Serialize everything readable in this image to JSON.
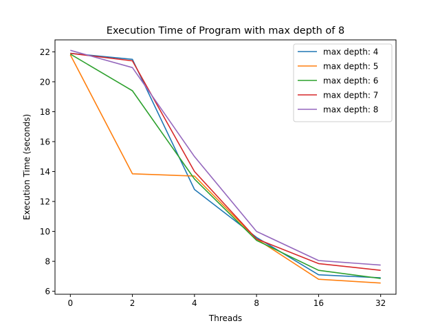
{
  "chart_data": {
    "type": "line",
    "title": "Execution Time of Program with max depth of 8",
    "xlabel": "Threads",
    "ylabel": "Execution Time (seconds)",
    "categories": [
      "0",
      "2",
      "4",
      "8",
      "16",
      "32"
    ],
    "ylim": [
      5.8,
      22.8
    ],
    "yticks": [
      6,
      8,
      10,
      12,
      14,
      16,
      18,
      20,
      22
    ],
    "grid": false,
    "legend_position": "top-right",
    "series": [
      {
        "name": "max depth: 4",
        "color": "#1f77b4",
        "values": [
          21.9,
          21.5,
          12.8,
          9.6,
          7.1,
          6.9
        ]
      },
      {
        "name": "max depth: 5",
        "color": "#ff7f0e",
        "values": [
          21.8,
          13.85,
          13.7,
          9.5,
          6.8,
          6.55
        ]
      },
      {
        "name": "max depth: 6",
        "color": "#2ca02c",
        "values": [
          21.85,
          19.4,
          13.5,
          9.4,
          7.4,
          6.85
        ]
      },
      {
        "name": "max depth: 7",
        "color": "#d62728",
        "values": [
          21.9,
          21.4,
          14.0,
          9.5,
          7.85,
          7.4
        ]
      },
      {
        "name": "max depth: 8",
        "color": "#9467bd",
        "values": [
          22.1,
          20.95,
          15.0,
          10.0,
          8.05,
          7.75
        ]
      }
    ]
  }
}
